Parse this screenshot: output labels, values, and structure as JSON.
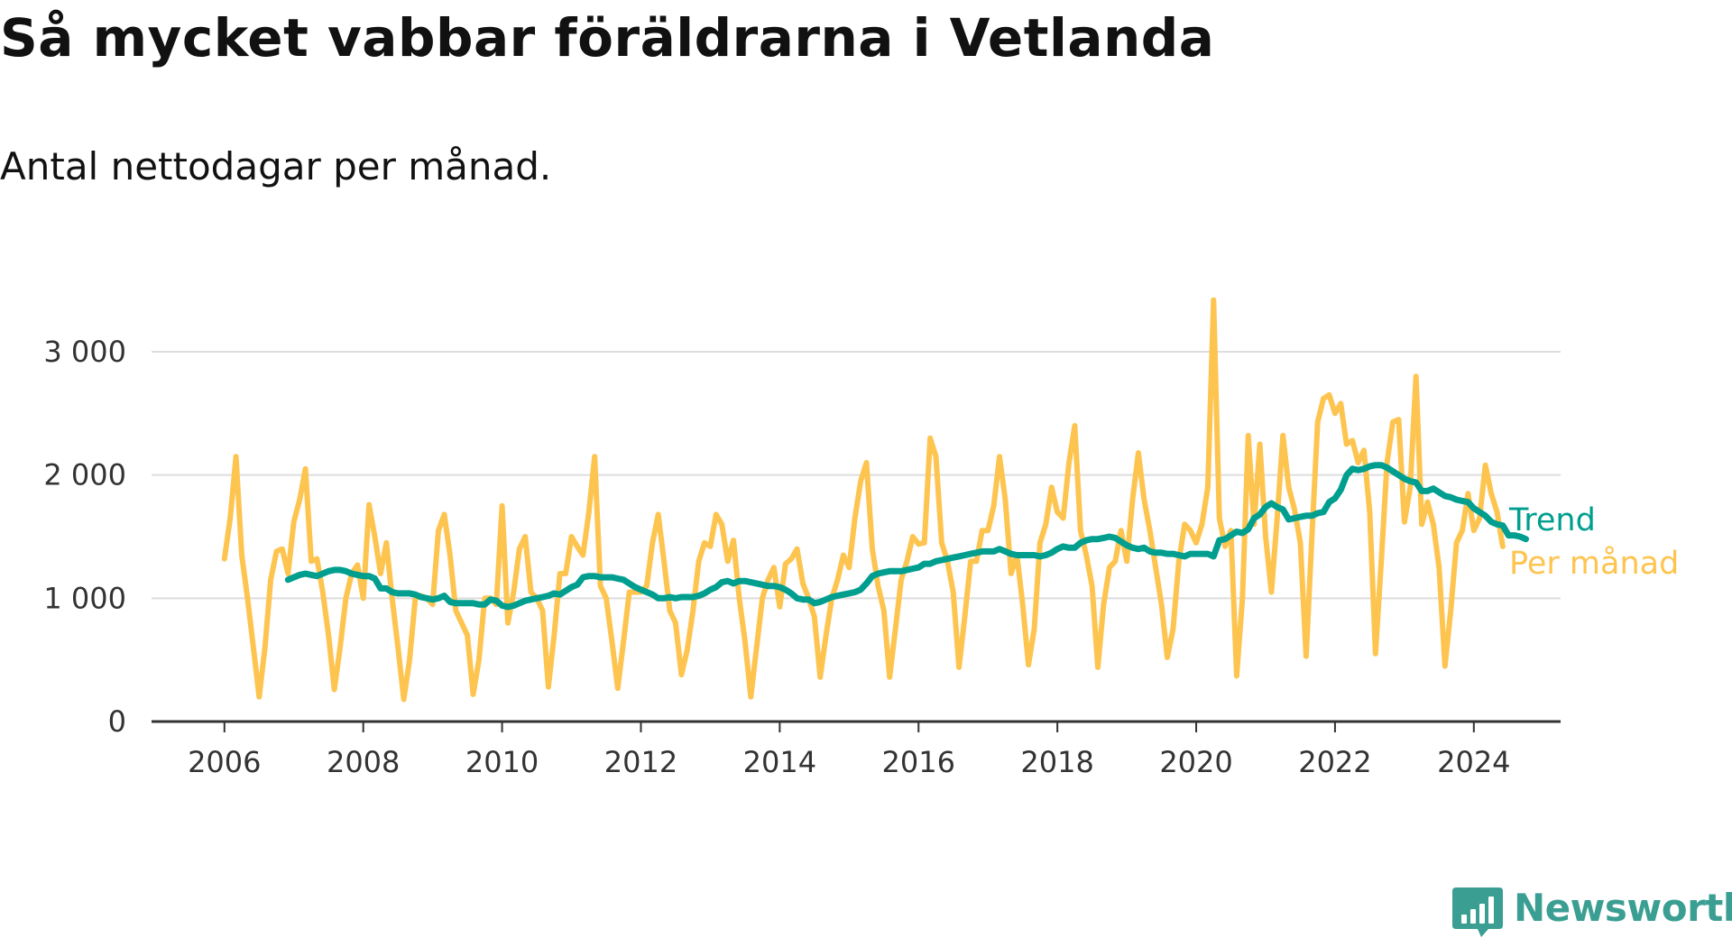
{
  "title": "Så mycket vabbar föräldrarna i Vetlanda",
  "subtitle": "Antal nettodagar per månad.",
  "brand": {
    "name": "Newsworthy",
    "color": "#3a9e92",
    "icon": "bar-chart-speech-bubble-icon"
  },
  "chart_data": {
    "type": "line",
    "x_start": 2006,
    "x_step": 0.0833333,
    "xlim": [
      2004.95,
      2025.25
    ],
    "ylim": [
      0,
      3000
    ],
    "x_ticks": [
      2006,
      2008,
      2010,
      2012,
      2014,
      2016,
      2018,
      2020,
      2022,
      2024
    ],
    "x_tick_labels": [
      "2006",
      "2008",
      "2010",
      "2012",
      "2014",
      "2016",
      "2018",
      "2020",
      "2022",
      "2024"
    ],
    "y_ticks": [
      0,
      1000,
      2000,
      3000
    ],
    "y_tick_labels": [
      "0",
      "1 000",
      "2 000",
      "3 000"
    ],
    "grid": true,
    "legend": "inline-right",
    "series": [
      {
        "name": "Per månad",
        "color": "#fdc450",
        "values": [
          1320,
          1650,
          2150,
          1350,
          1000,
          600,
          200,
          600,
          1150,
          1380,
          1400,
          1200,
          1620,
          1800,
          2050,
          1300,
          1320,
          1050,
          700,
          260,
          600,
          1000,
          1200,
          1270,
          1000,
          1760,
          1500,
          1200,
          1450,
          1000,
          600,
          180,
          500,
          1000,
          1020,
          1000,
          950,
          1550,
          1680,
          1350,
          900,
          800,
          700,
          220,
          500,
          1000,
          1000,
          950,
          1750,
          800,
          1050,
          1400,
          1500,
          1050,
          1000,
          900,
          280,
          700,
          1200,
          1200,
          1500,
          1420,
          1350,
          1700,
          2150,
          1100,
          1000,
          650,
          270,
          650,
          1050,
          1050,
          1050,
          1100,
          1450,
          1680,
          1300,
          900,
          800,
          380,
          580,
          900,
          1300,
          1450,
          1420,
          1680,
          1600,
          1300,
          1470,
          1000,
          650,
          200,
          600,
          1000,
          1150,
          1250,
          930,
          1280,
          1320,
          1400,
          1120,
          1000,
          850,
          360,
          700,
          1000,
          1150,
          1350,
          1250,
          1650,
          1950,
          2100,
          1400,
          1100,
          900,
          360,
          750,
          1150,
          1300,
          1500,
          1440,
          1450,
          2300,
          2150,
          1450,
          1300,
          1050,
          440,
          850,
          1300,
          1300,
          1550,
          1550,
          1750,
          2150,
          1800,
          1200,
          1350,
          950,
          460,
          750,
          1450,
          1600,
          1900,
          1700,
          1650,
          2100,
          2400,
          1550,
          1350,
          1100,
          440,
          950,
          1250,
          1300,
          1550,
          1300,
          1800,
          2180,
          1800,
          1550,
          1250,
          950,
          520,
          750,
          1300,
          1600,
          1550,
          1450,
          1600,
          1900,
          3420,
          1650,
          1420,
          1550,
          370,
          1000,
          2320,
          1600,
          2250,
          1500,
          1050,
          1650,
          2320,
          1900,
          1720,
          1450,
          530,
          1500,
          2430,
          2620,
          2650,
          2500,
          2580,
          2250,
          2280,
          2100,
          2200,
          1700,
          550,
          1300,
          2100,
          2430,
          2450,
          1620,
          1900,
          2800,
          1600,
          1780,
          1600,
          1250,
          450,
          900,
          1450,
          1550,
          1850,
          1550,
          1650,
          2080,
          1850,
          1700,
          1420
        ]
      },
      {
        "name": "Trend",
        "color": "#009e8e",
        "x_start": 2006.9167,
        "values": [
          1150,
          1170,
          1190,
          1200,
          1190,
          1180,
          1200,
          1220,
          1230,
          1230,
          1220,
          1200,
          1190,
          1180,
          1180,
          1160,
          1080,
          1080,
          1050,
          1040,
          1040,
          1040,
          1030,
          1010,
          1000,
          990,
          1000,
          1020,
          970,
          960,
          960,
          960,
          960,
          950,
          950,
          990,
          980,
          940,
          930,
          940,
          960,
          980,
          990,
          1000,
          1010,
          1020,
          1040,
          1030,
          1060,
          1090,
          1110,
          1170,
          1180,
          1180,
          1170,
          1170,
          1170,
          1160,
          1150,
          1120,
          1090,
          1070,
          1050,
          1030,
          1000,
          1000,
          1010,
          1000,
          1010,
          1010,
          1010,
          1020,
          1040,
          1070,
          1090,
          1130,
          1140,
          1120,
          1140,
          1140,
          1130,
          1120,
          1110,
          1100,
          1100,
          1090,
          1070,
          1040,
          1000,
          990,
          990,
          960,
          970,
          990,
          1010,
          1020,
          1030,
          1040,
          1050,
          1070,
          1120,
          1180,
          1200,
          1210,
          1220,
          1220,
          1220,
          1230,
          1240,
          1250,
          1280,
          1280,
          1300,
          1310,
          1320,
          1330,
          1340,
          1350,
          1360,
          1370,
          1380,
          1380,
          1380,
          1400,
          1380,
          1360,
          1350,
          1350,
          1350,
          1350,
          1340,
          1350,
          1370,
          1400,
          1420,
          1410,
          1410,
          1450,
          1470,
          1480,
          1480,
          1490,
          1500,
          1490,
          1460,
          1430,
          1410,
          1400,
          1410,
          1380,
          1370,
          1370,
          1360,
          1360,
          1350,
          1340,
          1360,
          1360,
          1360,
          1360,
          1340,
          1470,
          1480,
          1510,
          1540,
          1530,
          1560,
          1650,
          1680,
          1740,
          1770,
          1740,
          1720,
          1640,
          1650,
          1660,
          1670,
          1670,
          1690,
          1700,
          1780,
          1810,
          1880,
          2000,
          2050,
          2040,
          2050,
          2070,
          2080,
          2080,
          2060,
          2030,
          2000,
          1970,
          1950,
          1940,
          1870,
          1870,
          1890,
          1860,
          1830,
          1820,
          1800,
          1790,
          1780,
          1730,
          1700,
          1670,
          1620,
          1600,
          1590,
          1510,
          1510,
          1500,
          1480
        ]
      }
    ]
  }
}
